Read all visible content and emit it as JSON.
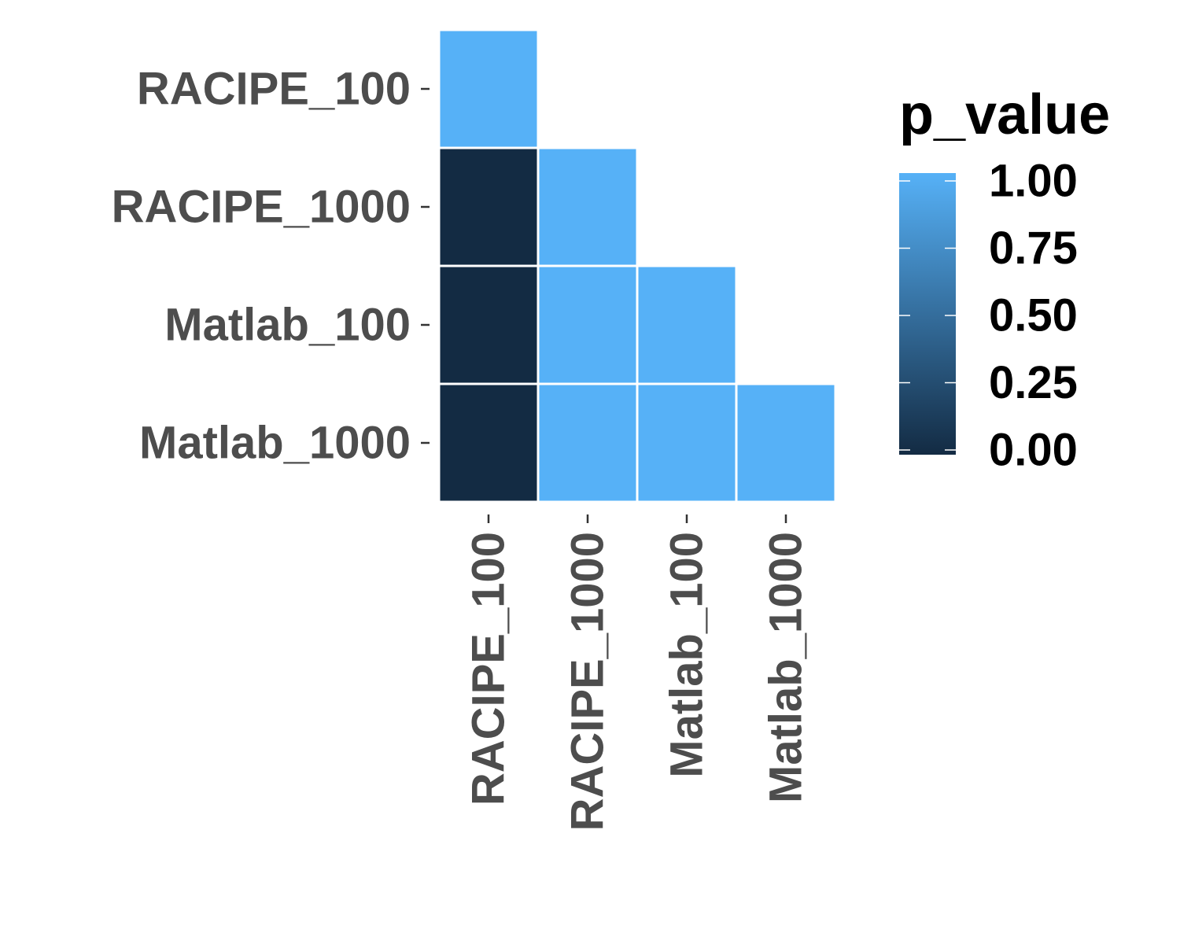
{
  "chart_data": {
    "type": "heatmap",
    "title": "",
    "xlabel": "",
    "ylabel": "",
    "categories": [
      "RACIPE_100",
      "RACIPE_1000",
      "Matlab_100",
      "Matlab_1000"
    ],
    "cells": [
      {
        "row": "RACIPE_100",
        "col": "RACIPE_100",
        "value": 1.0
      },
      {
        "row": "RACIPE_1000",
        "col": "RACIPE_100",
        "value": 0.0
      },
      {
        "row": "RACIPE_1000",
        "col": "RACIPE_1000",
        "value": 1.0
      },
      {
        "row": "Matlab_100",
        "col": "RACIPE_100",
        "value": 0.0
      },
      {
        "row": "Matlab_100",
        "col": "RACIPE_1000",
        "value": 1.0
      },
      {
        "row": "Matlab_100",
        "col": "Matlab_100",
        "value": 1.0
      },
      {
        "row": "Matlab_1000",
        "col": "RACIPE_100",
        "value": 0.0
      },
      {
        "row": "Matlab_1000",
        "col": "RACIPE_1000",
        "value": 1.0
      },
      {
        "row": "Matlab_1000",
        "col": "Matlab_100",
        "value": 1.0
      },
      {
        "row": "Matlab_1000",
        "col": "Matlab_1000",
        "value": 1.0
      }
    ],
    "legend": {
      "title": "p_value",
      "placement": "right",
      "range": [
        0,
        1
      ],
      "breaks": [
        0.0,
        0.25,
        0.5,
        0.75,
        1.0
      ],
      "labels": [
        "0.00",
        "0.25",
        "0.50",
        "0.75",
        "1.00"
      ],
      "low_color": "#132B43",
      "high_color": "#56B1F7"
    },
    "cell_border_color": "#ffffff",
    "grid": false
  }
}
